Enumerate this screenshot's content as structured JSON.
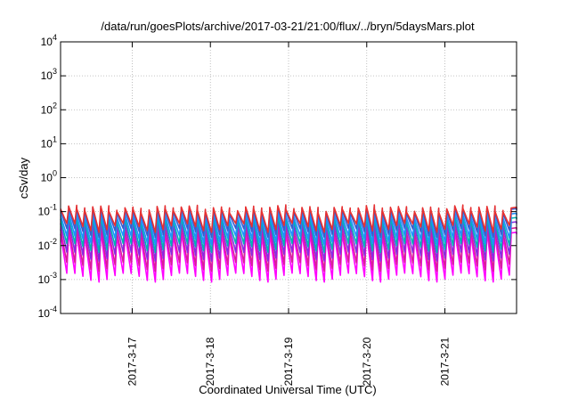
{
  "chart_data": {
    "type": "line",
    "title": "/data/run/goesPlots/archive/2017-03-21/21:00/flux/../bryn/5daysMars.plot",
    "xlabel": "Coordinated Universal Time (UTC)",
    "ylabel": "cSv/day",
    "yscale": "log",
    "ylim": [
      0.0001,
      10000
    ],
    "y_ticks": [
      {
        "base": "10",
        "exp": "-4"
      },
      {
        "base": "10",
        "exp": "-3"
      },
      {
        "base": "10",
        "exp": "-2"
      },
      {
        "base": "10",
        "exp": "-1"
      },
      {
        "base": "10",
        "exp": "0"
      },
      {
        "base": "10",
        "exp": "1"
      },
      {
        "base": "10",
        "exp": "2"
      },
      {
        "base": "10",
        "exp": "3"
      },
      {
        "base": "10",
        "exp": "4"
      }
    ],
    "xlim": [
      "2017-03-16 02:00",
      "2017-03-21 22:00"
    ],
    "x_ticks": [
      "2017-3-17",
      "2017-3-18",
      "2017-3-19",
      "2017-3-20",
      "2017-3-21"
    ],
    "grid": true,
    "sawtooth_period_hours": 2.47,
    "series": [
      {
        "color": "#ff00ff",
        "peak": 0.022,
        "trough": 0.0012
      },
      {
        "color": "#d81f99",
        "peak": 0.03,
        "trough": 0.0025
      },
      {
        "color": "#8a2be2",
        "peak": 0.045,
        "trough": 0.005
      },
      {
        "color": "#00b3b3",
        "peak": 0.06,
        "trough": 0.009
      },
      {
        "color": "#1e90ff",
        "peak": 0.08,
        "trough": 0.015
      },
      {
        "color": "#3a5bcc",
        "peak": 0.11,
        "trough": 0.025
      },
      {
        "color": "#e83030",
        "peak": 0.12,
        "trough": 0.035
      }
    ]
  }
}
